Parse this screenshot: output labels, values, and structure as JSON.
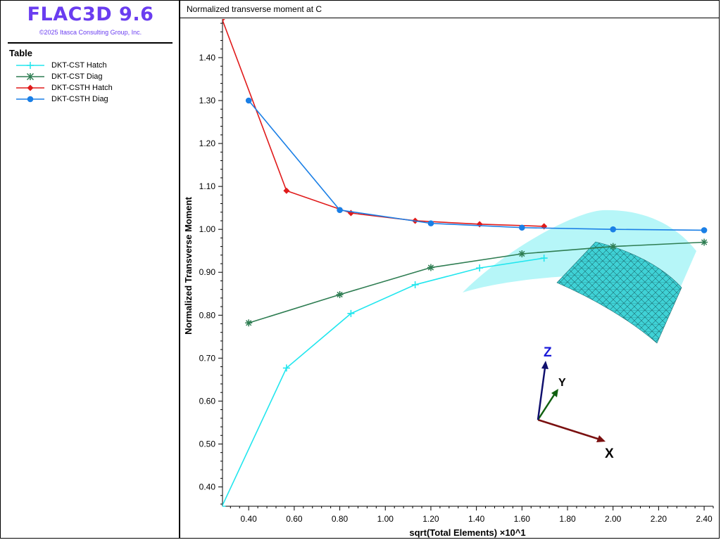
{
  "app": {
    "title": "FLAC3D 9.6",
    "copyright": "©2025 Itasca Consulting Group, Inc.",
    "title_color": "#6a3df0"
  },
  "legend": {
    "heading": "Table",
    "items": [
      {
        "label": "DKT-CST Hatch",
        "color": "#22e6ee",
        "marker": "plus"
      },
      {
        "label": "DKT-CST Diag",
        "color": "#2e7d52",
        "marker": "star"
      },
      {
        "label": "DKT-CSTH Hatch",
        "color": "#e01b1b",
        "marker": "diamond"
      },
      {
        "label": "DKT-CSTH Diag",
        "color": "#1a7fe6",
        "marker": "circle"
      }
    ]
  },
  "plot": {
    "title": "Normalized transverse moment at C"
  },
  "triad": {
    "x_label": "X",
    "y_label": "Y",
    "z_label": "Z",
    "x_color": "#7a1010",
    "y_color": "#106010",
    "z_color": "#10106e"
  },
  "chart_data": {
    "type": "line",
    "xlabel": "sqrt(Total Elements) ×10^1",
    "ylabel": "Normalized Transverse Moment",
    "xlim": [
      0.285,
      2.44
    ],
    "ylim": [
      0.355,
      1.49
    ],
    "xticks": [
      "0.40",
      "0.60",
      "0.80",
      "1.00",
      "1.20",
      "1.40",
      "1.60",
      "1.80",
      "2.00",
      "2.20",
      "2.40"
    ],
    "yticks": [
      "0.40",
      "0.50",
      "0.60",
      "0.70",
      "0.80",
      "0.90",
      "1.00",
      "1.10",
      "1.20",
      "1.30",
      "1.40"
    ],
    "grid": false,
    "series": [
      {
        "name": "DKT-CST Hatch",
        "color": "#22e6ee",
        "marker": "plus",
        "x": [
          0.283,
          0.566,
          0.849,
          1.131,
          1.414,
          1.697
        ],
        "y": [
          0.355,
          0.677,
          0.804,
          0.871,
          0.91,
          0.933
        ]
      },
      {
        "name": "DKT-CST Diag",
        "color": "#2e7d52",
        "marker": "star",
        "x": [
          0.4,
          0.8,
          1.2,
          1.6,
          2.0,
          2.4
        ],
        "y": [
          0.782,
          0.848,
          0.911,
          0.943,
          0.96,
          0.97
        ]
      },
      {
        "name": "DKT-CSTH Hatch",
        "color": "#e01b1b",
        "marker": "diamond",
        "x": [
          0.283,
          0.566,
          0.849,
          1.131,
          1.414,
          1.697
        ],
        "y": [
          1.49,
          1.09,
          1.038,
          1.02,
          1.012,
          1.007
        ]
      },
      {
        "name": "DKT-CSTH Diag",
        "color": "#1a7fe6",
        "marker": "circle",
        "x": [
          0.4,
          0.8,
          1.2,
          1.6,
          2.0,
          2.4
        ],
        "y": [
          1.3,
          1.045,
          1.014,
          1.004,
          1.0,
          0.998
        ]
      }
    ]
  }
}
